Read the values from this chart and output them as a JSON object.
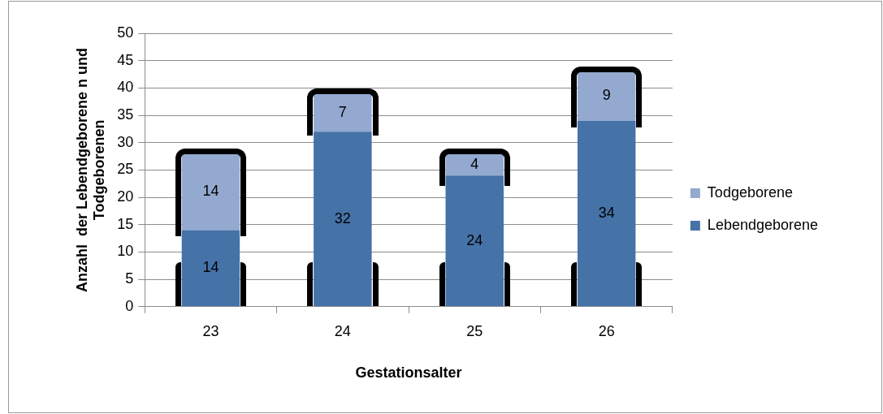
{
  "chart_data": {
    "type": "bar",
    "stacked": true,
    "xlabel": "Gestationsalter",
    "ylabel": "Anzahl  der Lebendgeborene n und\nTodgeborenen",
    "categories": [
      "23",
      "24",
      "25",
      "26"
    ],
    "series": [
      {
        "name": "Lebendgeborene",
        "color": "#4572a7",
        "values": [
          14,
          32,
          24,
          34
        ]
      },
      {
        "name": "Todgeborene",
        "color": "#93a9cf",
        "values": [
          14,
          7,
          4,
          9
        ]
      }
    ],
    "ylim": [
      0,
      50
    ],
    "yticks": [
      0,
      5,
      10,
      15,
      20,
      25,
      30,
      35,
      40,
      45,
      50
    ],
    "grid": "y",
    "legend": "right",
    "data_labels": true
  }
}
